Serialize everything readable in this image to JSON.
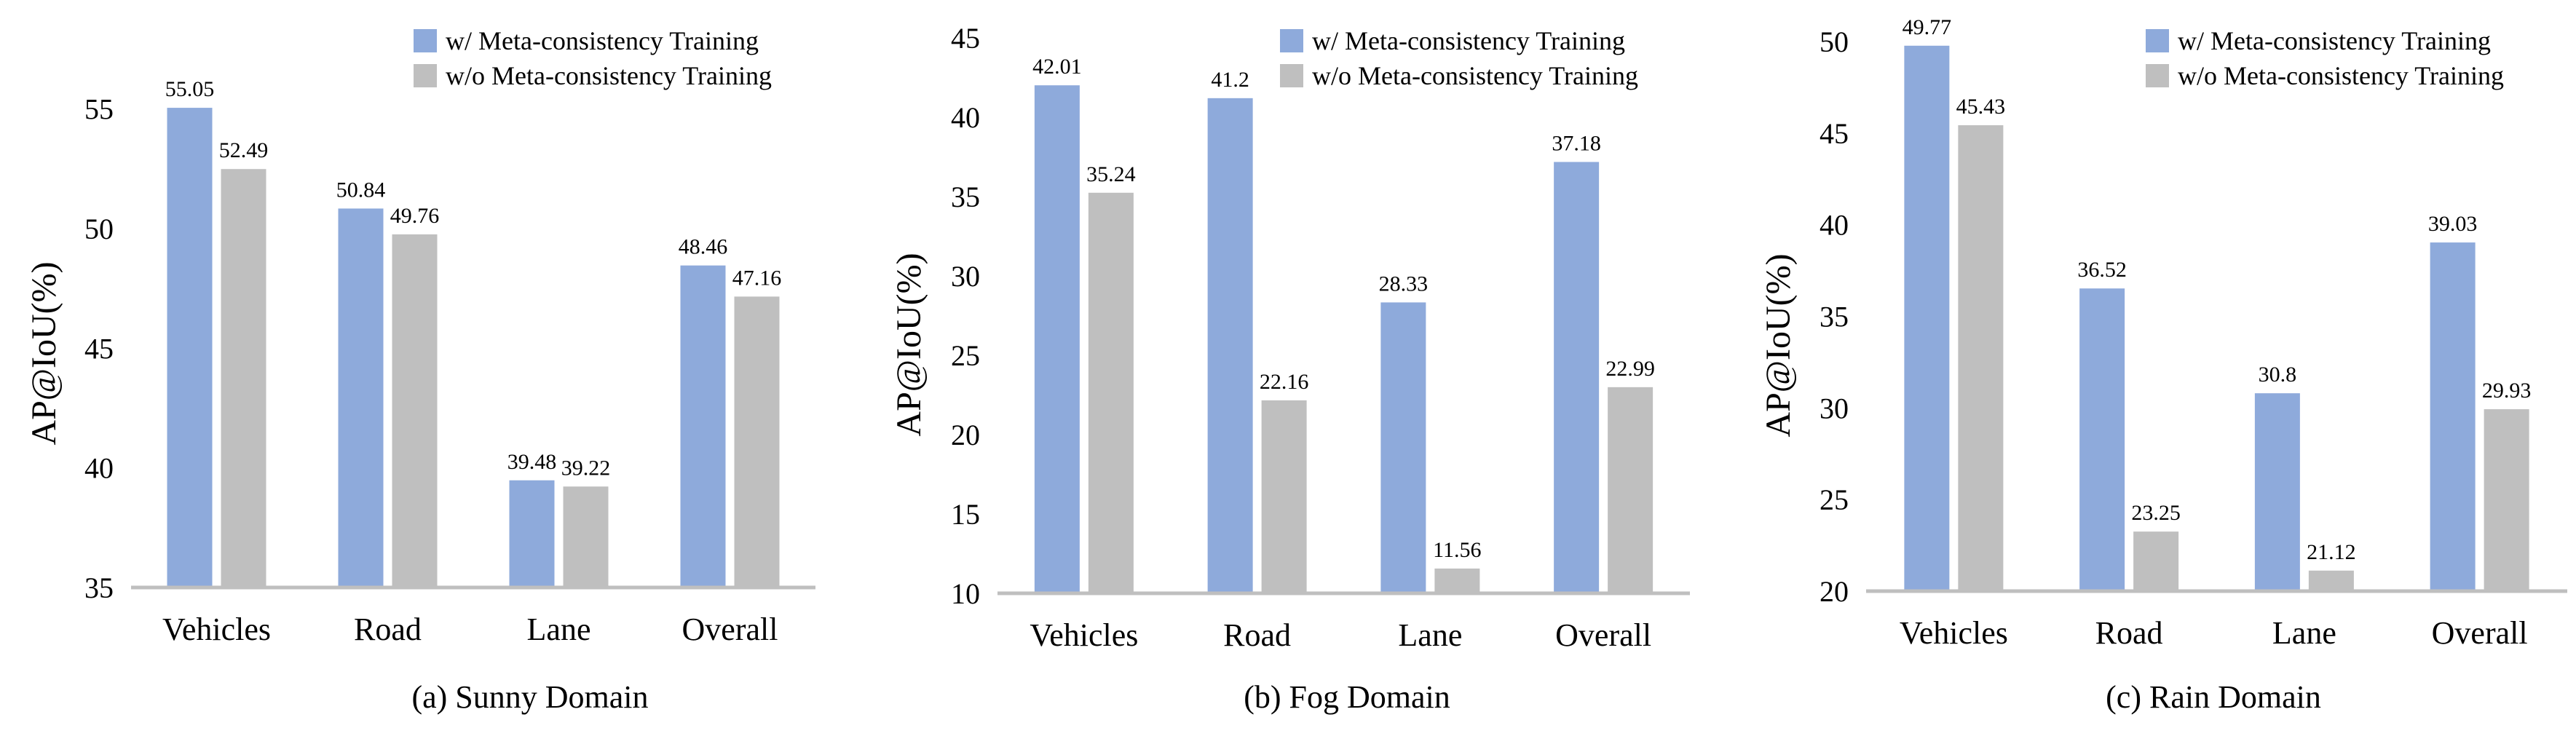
{
  "chart_data": [
    {
      "type": "bar",
      "title": "(a) Sunny Domain",
      "xlabel": "",
      "ylabel": "AP@IoU(%)",
      "categories": [
        "Vehicles",
        "Road",
        "Lane",
        "Overall"
      ],
      "ylim": [
        35,
        57
      ],
      "yticks": [
        35,
        40,
        45,
        50,
        55
      ],
      "grid": false,
      "legend_position": "top-right",
      "series": [
        {
          "name": "w/ Meta-consistency Training",
          "color": "#8eaadb",
          "values": [
            55.05,
            50.84,
            39.48,
            48.46
          ],
          "labels": [
            "55.05",
            "50.84",
            "39.48",
            "48.46"
          ]
        },
        {
          "name": "w/o Meta-consistency Training",
          "color": "#bfbfbf",
          "values": [
            52.49,
            49.76,
            39.22,
            47.16
          ],
          "labels": [
            "52.49",
            "49.76",
            "39.22",
            "47.16"
          ]
        }
      ]
    },
    {
      "type": "bar",
      "title": "(b) Fog Domain",
      "xlabel": "",
      "ylabel": "AP@IoU(%)",
      "categories": [
        "Vehicles",
        "Road",
        "Lane",
        "Overall"
      ],
      "ylim": [
        10,
        45
      ],
      "yticks": [
        10,
        15,
        20,
        25,
        30,
        35,
        40,
        45
      ],
      "grid": false,
      "legend_position": "top-right",
      "series": [
        {
          "name": "w/ Meta-consistency Training",
          "color": "#8eaadb",
          "values": [
            42.01,
            41.2,
            28.33,
            37.18
          ],
          "labels": [
            "42.01",
            "41.2",
            "28.33",
            "37.18"
          ]
        },
        {
          "name": "w/o Meta-consistency Training",
          "color": "#bfbfbf",
          "values": [
            35.24,
            22.16,
            11.56,
            22.99
          ],
          "labels": [
            "35.24",
            "22.16",
            "11.56",
            "22.99"
          ]
        }
      ]
    },
    {
      "type": "bar",
      "title": "(c) Rain Domain",
      "xlabel": "",
      "ylabel": "AP@IoU(%)",
      "categories": [
        "Vehicles",
        "Road",
        "Lane",
        "Overall"
      ],
      "ylim": [
        20,
        50
      ],
      "yticks": [
        20,
        25,
        30,
        35,
        40,
        45,
        50
      ],
      "grid": false,
      "legend_position": "top-right",
      "series": [
        {
          "name": "w/ Meta-consistency Training",
          "color": "#8eaadb",
          "values": [
            49.77,
            36.52,
            30.8,
            39.03
          ],
          "labels": [
            "49.77",
            "36.52",
            "30.8",
            "39.03"
          ]
        },
        {
          "name": "w/o Meta-consistency Training",
          "color": "#bfbfbf",
          "values": [
            45.43,
            23.25,
            21.12,
            29.93
          ],
          "labels": [
            "45.43",
            "23.25",
            "21.12",
            "29.93"
          ]
        }
      ]
    }
  ]
}
